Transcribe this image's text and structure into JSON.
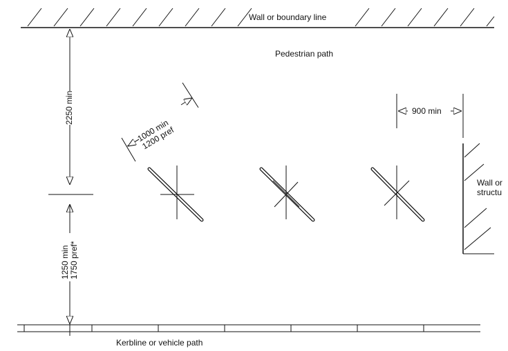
{
  "labels": {
    "top_wall": "Wall or boundary line",
    "pedestrian": "Pedestrian path",
    "kerb": "Kerbline or vehicle path",
    "side_wall_line1": "Wall or",
    "side_wall_line2": "structu",
    "dim_2250": "2250 min",
    "dim_1250_line1": "1250 min",
    "dim_1750_line2": "1750 pref*",
    "dim_1000_line1": "1000 min",
    "dim_1200_line2": "1200 pref",
    "dim_900": "900 min"
  }
}
